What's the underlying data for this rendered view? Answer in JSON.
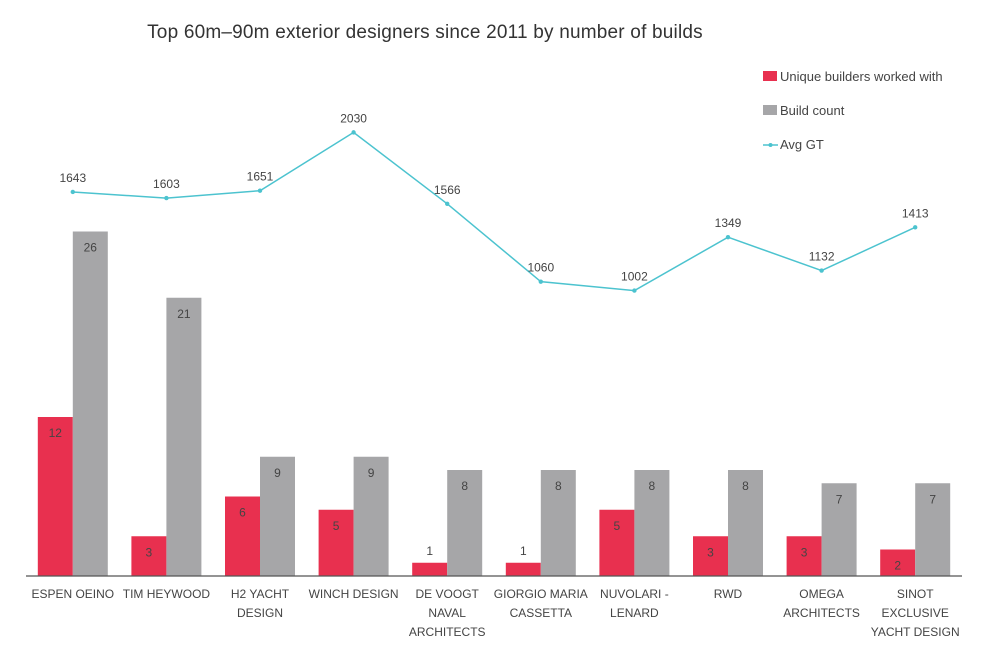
{
  "chart_data": {
    "type": "bar",
    "title": "Top 60m–90m exterior designers since 2011 by number of builds",
    "categories": [
      [
        "ESPEN OEINO"
      ],
      [
        "TIM HEYWOOD"
      ],
      [
        "H2 YACHT",
        "DESIGN"
      ],
      [
        "WINCH DESIGN"
      ],
      [
        "DE VOOGT",
        "NAVAL",
        "ARCHITECTS"
      ],
      [
        "GIORGIO MARIA",
        "CASSETTA"
      ],
      [
        "NUVOLARI -",
        "LENARD"
      ],
      [
        "RWD"
      ],
      [
        "OMEGA",
        "ARCHITECTS"
      ],
      [
        "SINOT",
        "EXCLUSIVE",
        "YACHT DESIGN"
      ]
    ],
    "series": [
      {
        "name": "Unique builders worked with",
        "kind": "bar",
        "color": "#e8304f",
        "values": [
          12,
          3,
          6,
          5,
          1,
          1,
          5,
          3,
          3,
          2
        ]
      },
      {
        "name": "Build count",
        "kind": "bar",
        "color": "#a6a6a8",
        "values": [
          26,
          21,
          9,
          9,
          8,
          8,
          8,
          8,
          7,
          7
        ]
      },
      {
        "name": "Avg GT",
        "kind": "line",
        "color": "#4cc3cf",
        "values": [
          1643,
          1603,
          1651,
          2030,
          1566,
          1060,
          1002,
          1349,
          1132,
          1413
        ]
      }
    ],
    "legend_position": "top-right",
    "grid": false
  }
}
